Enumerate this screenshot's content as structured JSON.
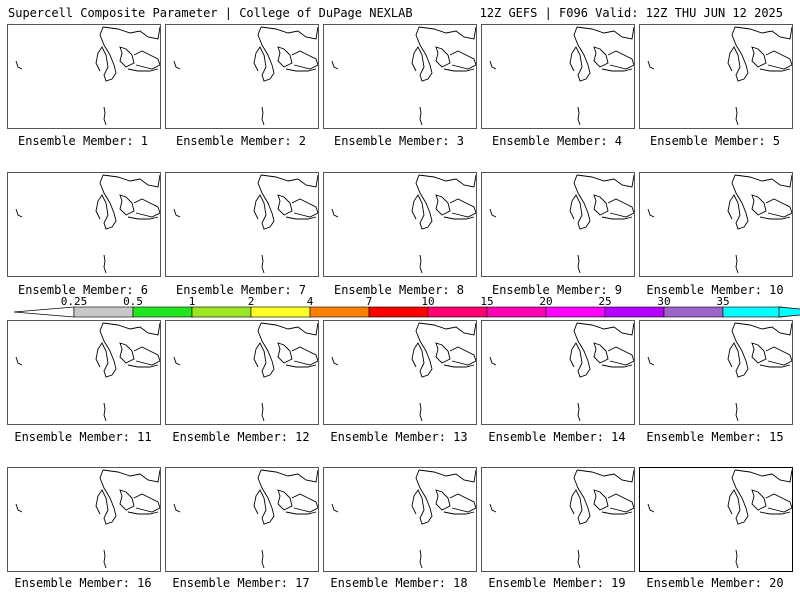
{
  "header": {
    "title_left": "Supercell Composite Parameter | College of DuPage NEXLAB",
    "title_right": "12Z GEFS | F096 Valid: 12Z THU JUN 12 2025"
  },
  "colorbar": {
    "labels": [
      "0.25",
      "0.5",
      "1",
      "2",
      "4",
      "7",
      "10",
      "15",
      "20",
      "25",
      "30",
      "35"
    ],
    "colors": [
      "#c8c8c8",
      "#23e623",
      "#9be623",
      "#ffff23",
      "#ff7f00",
      "#ff0000",
      "#ff0074",
      "#ff00b4",
      "#ff00ff",
      "#b400ff",
      "#a064c8",
      "#00ffff"
    ]
  },
  "members": [
    {
      "label": "Ensemble Member: 1"
    },
    {
      "label": "Ensemble Member: 2"
    },
    {
      "label": "Ensemble Member: 3"
    },
    {
      "label": "Ensemble Member: 4"
    },
    {
      "label": "Ensemble Member: 5"
    },
    {
      "label": "Ensemble Member: 6"
    },
    {
      "label": "Ensemble Member: 7"
    },
    {
      "label": "Ensemble Member: 8"
    },
    {
      "label": "Ensemble Member: 9"
    },
    {
      "label": "Ensemble Member: 10"
    },
    {
      "label": "Ensemble Member: 11"
    },
    {
      "label": "Ensemble Member: 12"
    },
    {
      "label": "Ensemble Member: 13"
    },
    {
      "label": "Ensemble Member: 14"
    },
    {
      "label": "Ensemble Member: 15"
    },
    {
      "label": "Ensemble Member: 16"
    },
    {
      "label": "Ensemble Member: 17"
    },
    {
      "label": "Ensemble Member: 18"
    },
    {
      "label": "Ensemble Member: 19"
    },
    {
      "label": "Ensemble Member: 20",
      "selected": true
    }
  ]
}
